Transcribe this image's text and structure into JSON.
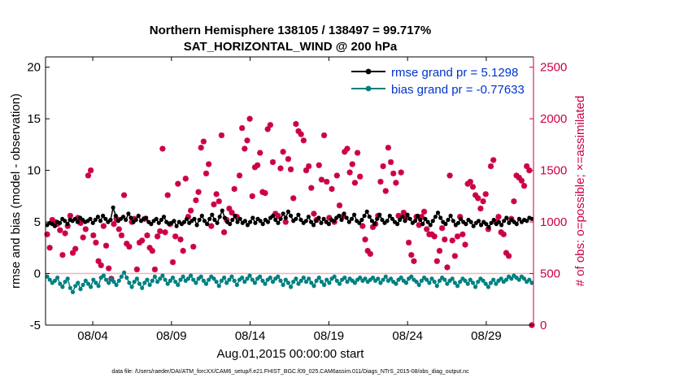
{
  "chart_data": {
    "type": "line",
    "title": "Northern Hemisphere 138105 / 138497 = 99.717%",
    "subtitle": "SAT_HORIZONTAL_WIND @ 200 hPa",
    "xlabel": "Aug.01,2015 00:00:00 start",
    "ylabel_left": "rmse and bias (model - observation)",
    "ylabel_right": "# of obs: o=possible; ×=assimilated",
    "ylim_left": [
      -5,
      21
    ],
    "ylim_right": [
      0,
      2600
    ],
    "x_ticks": [
      "08/04",
      "08/09",
      "08/14",
      "08/19",
      "08/24",
      "08/29"
    ],
    "y_ticks_left": [
      "-5",
      "0",
      "5",
      "10",
      "15",
      "20"
    ],
    "y_ticks_right": [
      "0",
      "500",
      "1000",
      "1500",
      "2000",
      "2500"
    ],
    "footnote": "data file: /Users/raeder/DAI/ATM_forcXX/CAM6_setup/f.e21.FHIST_BGC.f09_025.CAM6assim.011/Diags_NTrS_2015-08/obs_diag_output.nc",
    "colors": {
      "rmse": "#000000",
      "bias": "#008080",
      "obs": "#cc0044",
      "zero_line": "#f0b4be",
      "legend_text": "#0033cc"
    },
    "series": [
      {
        "name": "rmse grand pr = 5.1298",
        "color": "#000000",
        "values": [
          4.7,
          4.9,
          4.8,
          4.6,
          5.0,
          4.9,
          5.3,
          5.1,
          4.8,
          5.2,
          5.1,
          5.3,
          5.0,
          5.4,
          5.2,
          5.0,
          5.1,
          5.3,
          4.9,
          5.2,
          5.5,
          5.1,
          5.6,
          5.3,
          5.0,
          5.2,
          6.4,
          5.6,
          5.1,
          5.3,
          5.5,
          5.2,
          5.8,
          5.4,
          5.0,
          5.2,
          5.6,
          5.1,
          5.3,
          5.4,
          5.0,
          4.8,
          5.1,
          5.3,
          4.9,
          5.2,
          5.5,
          5.0,
          4.8,
          4.9,
          5.1,
          4.6,
          5.0,
          4.8,
          5.0,
          5.3,
          4.9,
          5.1,
          5.3,
          4.7,
          5.2,
          5.6,
          5.1,
          4.8,
          5.3,
          5.7,
          5.2,
          4.9,
          5.5,
          6.1,
          5.4,
          5.0,
          4.8,
          5.2,
          5.6,
          5.0,
          5.3,
          4.9,
          5.1,
          4.7,
          5.0,
          5.4,
          4.9,
          5.3,
          5.1,
          4.8,
          5.2,
          5.0,
          5.4,
          5.6,
          5.2,
          4.9,
          5.3,
          5.8,
          5.4,
          6.0,
          5.6,
          5.1,
          5.3,
          5.7,
          5.2,
          4.9,
          5.1,
          5.5,
          5.0,
          4.7,
          5.1,
          5.4,
          4.9,
          5.3,
          5.0,
          4.8,
          5.2,
          5.1,
          5.4,
          5.6,
          5.2,
          5.8,
          5.4,
          5.0,
          5.3,
          5.7,
          5.1,
          4.9,
          5.2,
          5.6,
          6.0,
          5.5,
          5.1,
          4.8,
          5.3,
          5.7,
          5.2,
          4.9,
          5.1,
          5.6,
          5.3,
          5.0,
          4.8,
          5.2,
          5.5,
          5.1,
          5.7,
          5.3,
          4.9,
          5.1,
          5.6,
          5.2,
          4.8,
          5.3,
          5.0,
          4.7,
          5.1,
          5.5,
          5.9,
          5.4,
          5.0,
          4.8,
          5.2,
          5.6,
          5.1,
          4.7,
          4.9,
          5.3,
          5.0,
          4.8,
          5.2,
          5.0,
          4.6,
          4.9,
          5.1,
          4.7,
          5.0,
          4.8,
          4.5,
          4.9,
          5.2,
          4.8,
          5.0,
          4.7,
          5.1,
          5.4,
          4.9,
          5.2,
          5.0,
          4.8,
          5.3,
          5.0,
          5.2,
          5.1,
          5.4,
          5.3
        ]
      },
      {
        "name": "bias grand pr = -0.77633",
        "color": "#008080",
        "values": [
          -0.3,
          -0.6,
          -0.9,
          -0.7,
          -0.4,
          -1.0,
          -1.3,
          -0.8,
          -0.5,
          -1.4,
          -1.8,
          -1.2,
          -0.9,
          -1.5,
          -1.1,
          -0.7,
          -1.0,
          -1.3,
          -0.6,
          -0.9,
          -1.2,
          -0.4,
          -0.2,
          -0.6,
          -0.9,
          -0.5,
          -0.8,
          -1.1,
          -0.7,
          -0.3,
          0.1,
          -0.4,
          -0.9,
          -1.3,
          -0.8,
          -0.5,
          -1.0,
          -1.4,
          -0.9,
          -0.6,
          -1.1,
          -0.7,
          -0.3,
          -0.8,
          -0.5,
          -0.2,
          -0.6,
          -1.0,
          -0.7,
          -0.4,
          -0.8,
          -1.1,
          -0.6,
          -0.3,
          -0.7,
          -0.5,
          -0.2,
          -0.6,
          -0.9,
          -0.5,
          -0.3,
          -0.7,
          -1.0,
          -0.6,
          -0.3,
          -0.5,
          -0.8,
          -1.2,
          -0.7,
          -0.4,
          -0.9,
          -0.6,
          -0.3,
          -0.7,
          -1.1,
          -0.6,
          -0.4,
          -0.8,
          -0.5,
          -0.2,
          -0.6,
          -0.9,
          -0.5,
          -0.3,
          -0.7,
          -1.0,
          -0.6,
          -0.4,
          -0.8,
          -0.5,
          -0.3,
          -0.7,
          -1.1,
          -0.6,
          -0.9,
          -1.3,
          -0.8,
          -0.5,
          -1.0,
          -0.7,
          -0.4,
          -0.8,
          -0.5,
          -0.9,
          -1.2,
          -0.7,
          -0.4,
          -0.8,
          -1.1,
          -0.6,
          -0.9,
          -0.5,
          -0.3,
          -0.7,
          -1.0,
          -0.6,
          -0.4,
          -0.8,
          -0.5,
          -0.7,
          -0.9,
          -0.6,
          -0.4,
          -0.7,
          -0.5,
          -0.8,
          -0.6,
          -0.4,
          -0.7,
          -0.5,
          -0.9,
          -0.6,
          -0.3,
          -0.7,
          -0.5,
          -0.8,
          -1.0,
          -0.6,
          -0.4,
          -0.7,
          -0.9,
          -0.5,
          -0.3,
          -0.6,
          -0.8,
          -1.1,
          -0.7,
          -0.4,
          -0.6,
          -0.9,
          -0.5,
          -0.8,
          -1.2,
          -0.7,
          -0.4,
          -0.6,
          -1.0,
          -0.7,
          -0.5,
          -0.9,
          -1.2,
          -0.8,
          -0.5,
          -0.7,
          -1.0,
          -0.6,
          -0.9,
          -1.3,
          -0.8,
          -0.5,
          -0.7,
          -1.0,
          -1.3,
          -0.9,
          -0.6,
          -1.0,
          -0.7,
          -0.5,
          -0.8,
          -0.6,
          -0.3,
          -0.5,
          -0.2,
          -0.4,
          -0.6,
          -0.3,
          -0.5,
          -0.8,
          -0.6,
          -0.9
        ]
      },
      {
        "name": "# of obs assimilated",
        "color": "#cc0044",
        "marker": "asterisk",
        "axis": "right",
        "values": [
          880,
          750,
          1020,
          1000,
          980,
          920,
          680,
          890,
          960,
          1060,
          700,
          740,
          1040,
          990,
          850,
          930,
          1450,
          1500,
          870,
          800,
          620,
          580,
          960,
          770,
          550,
          450,
          980,
          1030,
          930,
          870,
          1260,
          790,
          760,
          1000,
          1030,
          540,
          800,
          820,
          1030,
          870,
          750,
          720,
          540,
          860,
          910,
          1710,
          900,
          1260,
          980,
          610,
          860,
          1370,
          830,
          720,
          1420,
          1050,
          1110,
          760,
          1210,
          1290,
          1720,
          1780,
          1470,
          1560,
          960,
          1170,
          1270,
          1200,
          1840,
          900,
          1020,
          1130,
          1090,
          1320,
          1050,
          1450,
          1910,
          1710,
          1790,
          2000,
          1250,
          1530,
          1550,
          1670,
          1290,
          1280,
          1900,
          1940,
          1580,
          1080,
          1060,
          1520,
          1680,
          1000,
          1610,
          1510,
          1230,
          1950,
          1880,
          1850,
          1790,
          1500,
          1540,
          1330,
          1080,
          1020,
          1550,
          1410,
          1840,
          1390,
          1040,
          1320,
          1000,
          1450,
          1160,
          1050,
          1680,
          1710,
          1480,
          1560,
          1380,
          1670,
          1440,
          960,
          830,
          720,
          690,
          950,
          980,
          1060,
          1390,
          1540,
          1300,
          1720,
          1580,
          1470,
          1380,
          1060,
          1480,
          1090,
          1040,
          800,
          680,
          620,
          1050,
          970,
          1050,
          1100,
          930,
          880,
          880,
          860,
          620,
          720,
          940,
          830,
          560,
          1450,
          820,
          670,
          860,
          1050,
          880,
          780,
          1370,
          1390,
          1340,
          1260,
          1230,
          1130,
          1200,
          1270,
          930,
          1540,
          1600,
          1000,
          1050,
          900,
          880,
          700,
          670,
          1030,
          1200,
          1450,
          1430,
          1400,
          1350,
          1540,
          1500,
          0
        ]
      }
    ]
  }
}
